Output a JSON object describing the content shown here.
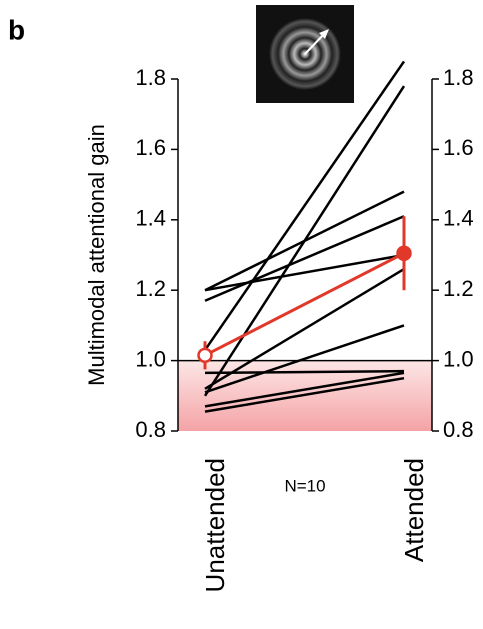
{
  "chart_data": {
    "type": "paired_line",
    "panel_label": "b",
    "ylabel": "Multimodal attentional gain",
    "annotation": "N=10",
    "categories": [
      "Unattended",
      "Attended"
    ],
    "ylim": [
      0.8,
      1.8
    ],
    "yticks": [
      {
        "value": 0.8,
        "label": "0.8"
      },
      {
        "value": 1.0,
        "label": "1.0"
      },
      {
        "value": 1.2,
        "label": "1.2"
      },
      {
        "value": 1.4,
        "label": "1.4"
      },
      {
        "value": 1.6,
        "label": "1.6"
      },
      {
        "value": 1.8,
        "label": "1.8"
      }
    ],
    "reference": 1,
    "color": "#000000",
    "series": [
      {
        "values": [
          1.03,
          1.85
        ]
      },
      {
        "values": [
          0.9,
          1.78
        ]
      },
      {
        "values": [
          1.2,
          1.48
        ]
      },
      {
        "values": [
          1.2,
          1.3
        ]
      },
      {
        "values": [
          1.17,
          1.41
        ]
      },
      {
        "values": [
          0.92,
          1.26
        ]
      },
      {
        "values": [
          0.91,
          1.1
        ]
      },
      {
        "values": [
          0.965,
          0.97
        ]
      },
      {
        "values": [
          0.87,
          0.965
        ]
      },
      {
        "values": [
          0.855,
          0.95
        ]
      }
    ],
    "mean": {
      "values": [
        1.015,
        1.305
      ],
      "errors": [
        0.04,
        0.105
      ],
      "color": "#e2382a"
    }
  }
}
